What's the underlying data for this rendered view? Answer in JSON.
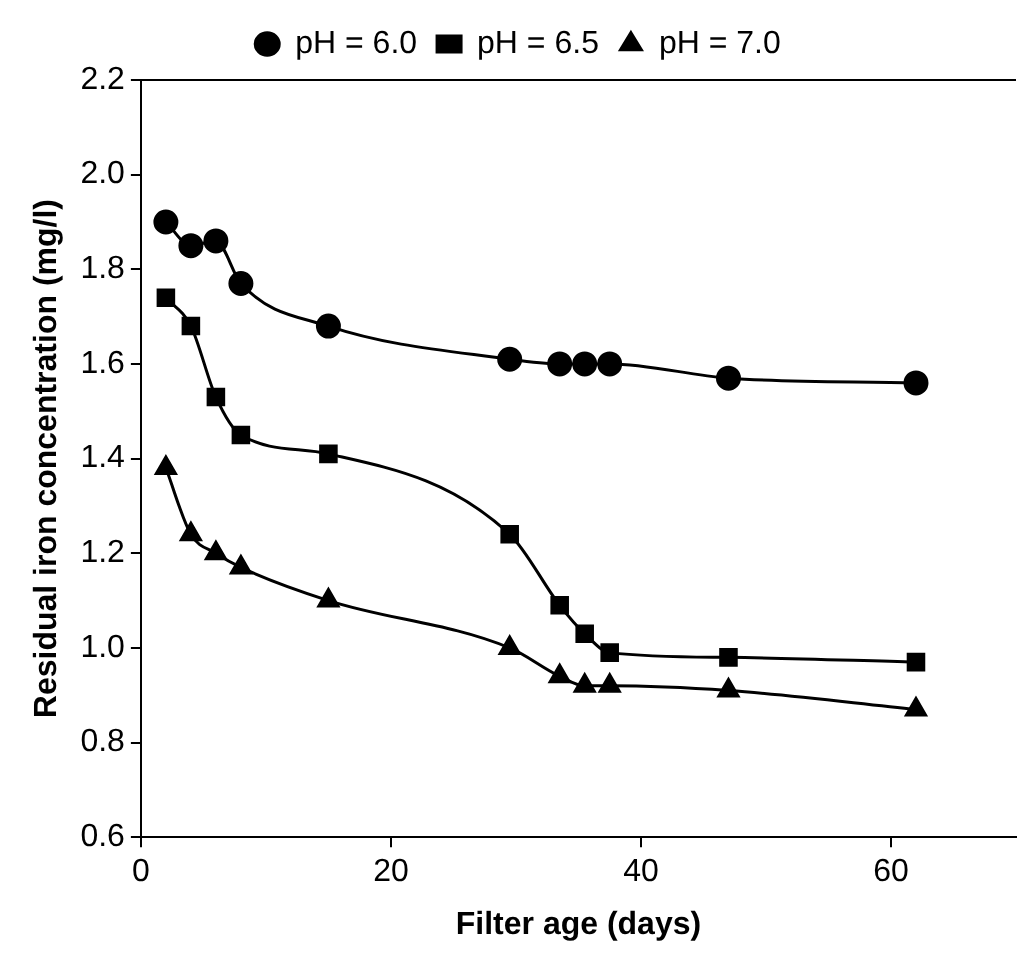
{
  "chart_data": {
    "type": "line",
    "xlabel": "Filter age (days)",
    "ylabel": "Residual iron concentration (mg/l)",
    "x": [
      2,
      4,
      6,
      8,
      15,
      29.5,
      33.5,
      35.5,
      37.5,
      47,
      62
    ],
    "series": [
      {
        "name": "pH = 6.0",
        "color": "#000000",
        "marker": "circle",
        "values": [
          1.9,
          1.85,
          1.86,
          1.77,
          1.68,
          1.61,
          1.6,
          1.6,
          1.6,
          1.57,
          1.56
        ]
      },
      {
        "name": "pH = 6.5",
        "color": "#000000",
        "marker": "square",
        "values": [
          1.74,
          1.68,
          1.53,
          1.45,
          1.41,
          1.24,
          1.09,
          1.03,
          0.99,
          0.98,
          0.97
        ]
      },
      {
        "name": "pH = 7.0",
        "color": "#000000",
        "marker": "triangle",
        "values": [
          1.38,
          1.24,
          1.2,
          1.17,
          1.1,
          1.0,
          0.94,
          0.92,
          0.92,
          0.91,
          0.87
        ]
      }
    ],
    "xlim": [
      0,
      70
    ],
    "xticks": [
      0,
      20,
      40,
      60
    ],
    "ylim": [
      0.6,
      2.2
    ],
    "yticks": [
      {
        "value": 0.6,
        "label": "0.6"
      },
      {
        "value": 0.8,
        "label": "0.8"
      },
      {
        "value": 1.0,
        "label": "1.0"
      },
      {
        "value": 1.2,
        "label": "1.2"
      },
      {
        "value": 1.4,
        "label": "1.4"
      },
      {
        "value": 1.6,
        "label": "1.6"
      },
      {
        "value": 1.8,
        "label": "1.8"
      },
      {
        "value": 2.0,
        "label": "2.0"
      },
      {
        "value": 2.2,
        "label": "2.2"
      }
    ],
    "grid": false,
    "legend": "top"
  }
}
